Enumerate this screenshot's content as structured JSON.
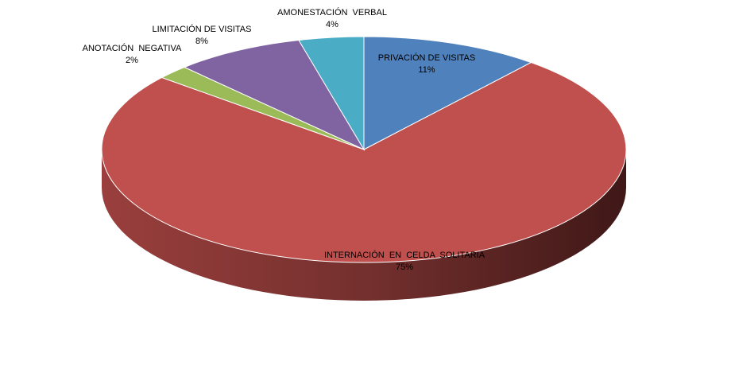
{
  "chart_data": {
    "type": "pie",
    "title": "",
    "slices": [
      {
        "label": "PRIVACIÓN DE VISITAS",
        "value": 11,
        "display": "11%",
        "color": "#4F81BD"
      },
      {
        "label": "INTERNACIÓN  EN  CELDA  SOLITARIA",
        "value": 75,
        "display": "75%",
        "color": "#C0504D"
      },
      {
        "label": "ANOTACIÓN  NEGATIVA",
        "value": 2,
        "display": "2%",
        "color": "#9BBB59"
      },
      {
        "label": "LIMITACIÓN DE VISITAS",
        "value": 8,
        "display": "8%",
        "color": "#8064A2"
      },
      {
        "label": "AMONESTACIÓN  VERBAL",
        "value": 4,
        "display": "4%",
        "color": "#4BACC6"
      }
    ],
    "legend": "none",
    "style": "3d"
  }
}
